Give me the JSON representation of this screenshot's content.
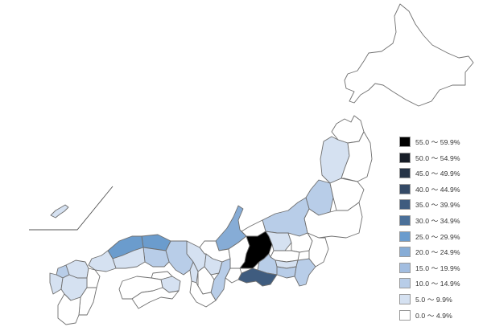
{
  "legend": {
    "items": [
      {
        "label": "55.0 ～ 59.9%",
        "color": "#000000"
      },
      {
        "label": "50.0 ～ 54.9%",
        "color": "#171d27"
      },
      {
        "label": "45.0 ～ 49.9%",
        "color": "#263447"
      },
      {
        "label": "40.0 ～ 44.9%",
        "color": "#344a66"
      },
      {
        "label": "35.0 ～ 39.9%",
        "color": "#3f5c7f"
      },
      {
        "label": "30.0 ～ 34.9%",
        "color": "#4b7099"
      },
      {
        "label": "25.0 ～ 29.9%",
        "color": "#6b9ccd"
      },
      {
        "label": "20.0 ～ 24.9%",
        "color": "#86acd6"
      },
      {
        "label": "15.0 ～ 19.9%",
        "color": "#a2bde0"
      },
      {
        "label": "10.0 ～ 14.9%",
        "color": "#b8cde8"
      },
      {
        "label": "5.0 ～ 9.9%",
        "color": "#d5e1f1"
      },
      {
        "label": "0.0 ～ 4.9%",
        "color": "#ffffff"
      }
    ]
  },
  "map": {
    "regions": [
      {
        "id": "hokkaido",
        "bin": 11
      },
      {
        "id": "aomori",
        "bin": 11
      },
      {
        "id": "akita",
        "bin": 10
      },
      {
        "id": "iwate",
        "bin": 11
      },
      {
        "id": "yamagata",
        "bin": 9
      },
      {
        "id": "miyagi",
        "bin": 11
      },
      {
        "id": "fukushima",
        "bin": 11
      },
      {
        "id": "niigata",
        "bin": 9
      },
      {
        "id": "toyama",
        "bin": 11
      },
      {
        "id": "ishikawa",
        "bin": 7
      },
      {
        "id": "fukui",
        "bin": 11
      },
      {
        "id": "nagano",
        "bin": 0
      },
      {
        "id": "gunma",
        "bin": 10
      },
      {
        "id": "tochigi",
        "bin": 11
      },
      {
        "id": "ibaraki",
        "bin": 11
      },
      {
        "id": "saitama",
        "bin": 11
      },
      {
        "id": "tokyo",
        "bin": 10
      },
      {
        "id": "chiba",
        "bin": 9
      },
      {
        "id": "kanagawa",
        "bin": 9
      },
      {
        "id": "yamanashi",
        "bin": 9
      },
      {
        "id": "shizuoka",
        "bin": 4
      },
      {
        "id": "aichi",
        "bin": 11
      },
      {
        "id": "gifu",
        "bin": 11
      },
      {
        "id": "mie",
        "bin": 9
      },
      {
        "id": "shiga",
        "bin": 10
      },
      {
        "id": "kyoto",
        "bin": 10
      },
      {
        "id": "osaka",
        "bin": 10
      },
      {
        "id": "nara",
        "bin": 11
      },
      {
        "id": "wakayama",
        "bin": 11
      },
      {
        "id": "hyogo",
        "bin": 9
      },
      {
        "id": "tottori",
        "bin": 6
      },
      {
        "id": "shimane",
        "bin": 6
      },
      {
        "id": "okayama",
        "bin": 9
      },
      {
        "id": "hiroshima",
        "bin": 10
      },
      {
        "id": "yamaguchi",
        "bin": 10
      },
      {
        "id": "kagawa",
        "bin": 11
      },
      {
        "id": "tokushima",
        "bin": 10
      },
      {
        "id": "ehime",
        "bin": 11
      },
      {
        "id": "kochi",
        "bin": 11
      },
      {
        "id": "fukuoka",
        "bin": 10
      },
      {
        "id": "saga",
        "bin": 9
      },
      {
        "id": "nagasaki",
        "bin": 10
      },
      {
        "id": "oita",
        "bin": 11
      },
      {
        "id": "kumamoto",
        "bin": 10
      },
      {
        "id": "miyazaki",
        "bin": 11
      },
      {
        "id": "kagoshima",
        "bin": 11
      },
      {
        "id": "okinawa",
        "bin": 10
      }
    ]
  }
}
